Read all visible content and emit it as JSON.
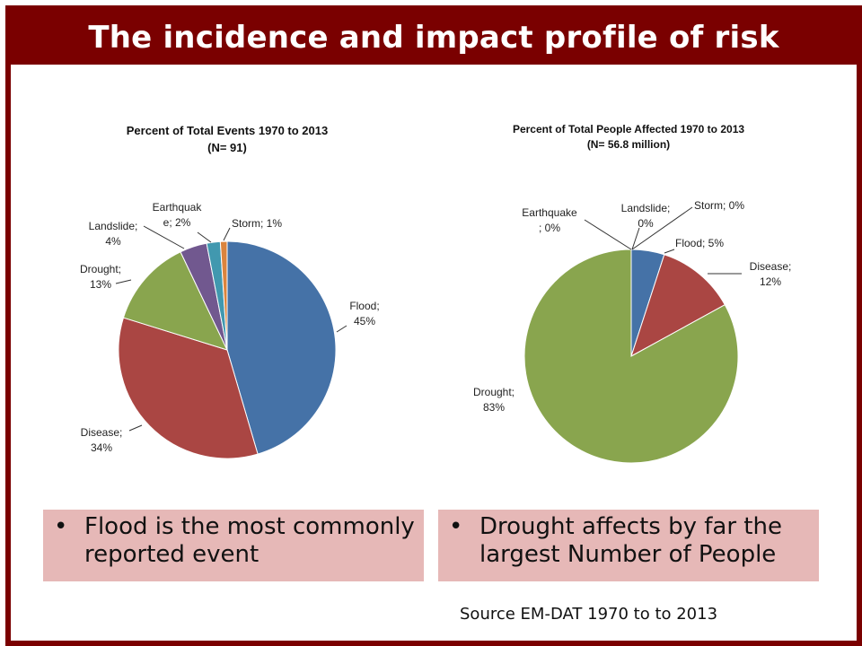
{
  "header": {
    "title": "The incidence and impact profile of risk"
  },
  "bullets": [
    {
      "text": "Flood is the most commonly reported event"
    },
    {
      "text": "Drought affects by far the largest Number of People"
    }
  ],
  "source": "Source EM-DAT 1970 to to 2013",
  "colors": {
    "frame": "#7a0000",
    "bullet_bg": "#e6b8b7",
    "flood": "#4572a7",
    "disease": "#aa4643",
    "drought": "#89a54e",
    "landslide": "#71588f",
    "earthquake": "#4198af",
    "storm": "#db843d"
  },
  "chart_data": [
    {
      "type": "pie",
      "title": "Percent of Total Events 1970 to 2013",
      "subtitle": "(N= 91)",
      "slices": [
        {
          "name": "Flood",
          "value": 45,
          "label_lines": [
            "Flood;",
            "45%"
          ]
        },
        {
          "name": "Disease",
          "value": 34,
          "label_lines": [
            "Disease;",
            "34%"
          ]
        },
        {
          "name": "Drought",
          "value": 13,
          "label_lines": [
            "Drought;",
            "13%"
          ]
        },
        {
          "name": "Landslide",
          "value": 4,
          "label_lines": [
            "Landslide;",
            "4%"
          ]
        },
        {
          "name": "Earthquake",
          "value": 2,
          "label_lines": [
            "Earthquak",
            "e; 2%"
          ]
        },
        {
          "name": "Storm",
          "value": 1,
          "label_lines": [
            "Storm; 1%"
          ]
        }
      ]
    },
    {
      "type": "pie",
      "title": "Percent of Total People Affected 1970 to 2013",
      "subtitle": "(N= 56.8 million)",
      "slices": [
        {
          "name": "Flood",
          "value": 5,
          "label_lines": [
            "Flood; 5%"
          ]
        },
        {
          "name": "Disease",
          "value": 12,
          "label_lines": [
            "Disease;",
            "12%"
          ]
        },
        {
          "name": "Drought",
          "value": 83,
          "label_lines": [
            "Drought;",
            "83%"
          ]
        },
        {
          "name": "Landslide",
          "value": 0,
          "label_lines": [
            "Landslide;",
            "0%"
          ]
        },
        {
          "name": "Earthquake",
          "value": 0,
          "label_lines": [
            "Earthquake",
            "; 0%"
          ]
        },
        {
          "name": "Storm",
          "value": 0,
          "label_lines": [
            "Storm; 0%"
          ]
        }
      ]
    }
  ]
}
